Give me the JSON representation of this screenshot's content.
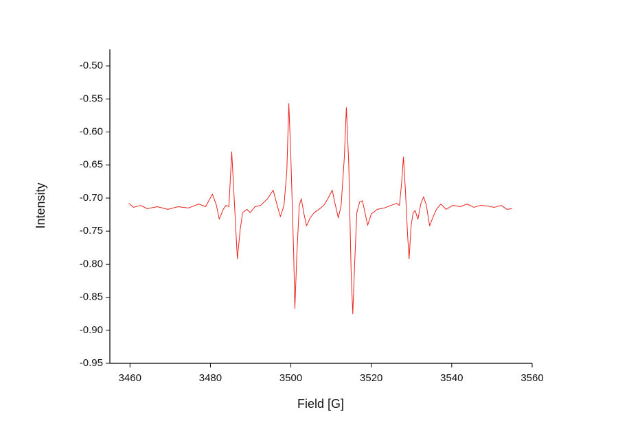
{
  "chart_data": {
    "type": "line",
    "x_label": "Field [G]",
    "y_label": "Intensity",
    "color": "#e8231e",
    "xlim": [
      3455,
      3560
    ],
    "ylim": [
      -0.95,
      -0.475
    ],
    "xticks": [
      3460,
      3480,
      3500,
      3520,
      3540,
      3560
    ],
    "yticks": [
      {
        "value": -0.95,
        "label": "-0.95"
      },
      {
        "value": -0.9,
        "label": "-0.90"
      },
      {
        "value": -0.85,
        "label": "-0.85"
      },
      {
        "value": -0.8,
        "label": "-0.80"
      },
      {
        "value": -0.75,
        "label": "-0.75"
      },
      {
        "value": -0.7,
        "label": "-0.70"
      },
      {
        "value": -0.65,
        "label": "-0.65"
      },
      {
        "value": -0.6,
        "label": "-0.60"
      },
      {
        "value": -0.55,
        "label": "-0.55"
      },
      {
        "value": -0.5,
        "label": "-0.50"
      }
    ],
    "x": [
      3459.7,
      3460.9,
      3462.6,
      3464.3,
      3466.8,
      3469.4,
      3472.0,
      3474.5,
      3477.1,
      3478.8,
      3480.5,
      3481.5,
      3482.2,
      3483.2,
      3483.9,
      3484.6,
      3485.3,
      3486.0,
      3486.7,
      3487.4,
      3488.0,
      3489.1,
      3489.9,
      3491.1,
      3492.5,
      3494.2,
      3495.6,
      3496.6,
      3497.4,
      3498.3,
      3499.0,
      3499.5,
      3500.0,
      3500.7,
      3501.0,
      3501.5,
      3502.1,
      3502.6,
      3503.2,
      3503.9,
      3504.8,
      3505.8,
      3507.0,
      3508.2,
      3509.2,
      3510.3,
      3510.9,
      3511.8,
      3512.5,
      3513.3,
      3513.8,
      3514.4,
      3515.0,
      3515.4,
      3515.9,
      3516.4,
      3517.1,
      3517.8,
      3518.5,
      3519.1,
      3520.0,
      3521.5,
      3523.2,
      3524.9,
      3526.3,
      3527.0,
      3527.5,
      3528.0,
      3528.5,
      3529.0,
      3529.4,
      3529.9,
      3530.4,
      3530.9,
      3531.6,
      3532.3,
      3533.0,
      3533.7,
      3534.5,
      3535.4,
      3536.2,
      3537.3,
      3538.6,
      3540.3,
      3542.1,
      3543.8,
      3545.5,
      3547.2,
      3548.9,
      3550.6,
      3552.3,
      3553.7,
      3555.0
    ],
    "values": [
      -0.708,
      -0.714,
      -0.711,
      -0.716,
      -0.713,
      -0.717,
      -0.713,
      -0.715,
      -0.709,
      -0.713,
      -0.694,
      -0.711,
      -0.732,
      -0.717,
      -0.711,
      -0.713,
      -0.63,
      -0.711,
      -0.792,
      -0.748,
      -0.722,
      -0.717,
      -0.722,
      -0.713,
      -0.711,
      -0.701,
      -0.688,
      -0.711,
      -0.728,
      -0.711,
      -0.659,
      -0.557,
      -0.638,
      -0.784,
      -0.867,
      -0.784,
      -0.711,
      -0.701,
      -0.722,
      -0.742,
      -0.73,
      -0.722,
      -0.717,
      -0.711,
      -0.701,
      -0.688,
      -0.706,
      -0.73,
      -0.711,
      -0.638,
      -0.563,
      -0.649,
      -0.815,
      -0.875,
      -0.794,
      -0.722,
      -0.706,
      -0.704,
      -0.724,
      -0.741,
      -0.724,
      -0.717,
      -0.715,
      -0.711,
      -0.708,
      -0.711,
      -0.68,
      -0.638,
      -0.69,
      -0.753,
      -0.792,
      -0.742,
      -0.722,
      -0.719,
      -0.732,
      -0.709,
      -0.698,
      -0.711,
      -0.742,
      -0.728,
      -0.717,
      -0.709,
      -0.717,
      -0.711,
      -0.713,
      -0.709,
      -0.714,
      -0.711,
      -0.712,
      -0.714,
      -0.711,
      -0.717,
      -0.716
    ]
  }
}
